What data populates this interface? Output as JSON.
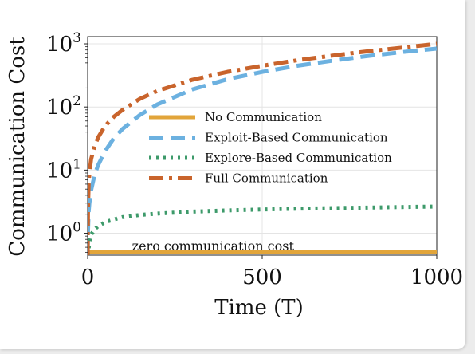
{
  "chart_data": {
    "type": "line",
    "title": "",
    "xlabel": "Time (T)",
    "ylabel": "Communication Cost",
    "xlim": [
      0,
      1000
    ],
    "ylim": [
      0.45,
      1300
    ],
    "yscale": "log",
    "grid": true,
    "legend_position": "center",
    "x_ticks": [
      {
        "value": 0,
        "label": "0"
      },
      {
        "value": 500,
        "label": "500"
      },
      {
        "value": 1000,
        "label": "1000"
      }
    ],
    "y_ticks": [
      {
        "value": 1,
        "label": "10",
        "exp": "0"
      },
      {
        "value": 10,
        "label": "10",
        "exp": "1"
      },
      {
        "value": 100,
        "label": "10",
        "exp": "2"
      },
      {
        "value": 1000,
        "label": "10",
        "exp": "3"
      }
    ],
    "series": [
      {
        "name": "No Communication",
        "color": "#E2A53A",
        "dash": "solid",
        "x": [
          0,
          1000
        ],
        "y": [
          0.5,
          0.5
        ]
      },
      {
        "name": "Exploit-Based Communication",
        "color": "#6CB1E0",
        "dash": "dashed",
        "x": [
          0,
          1,
          3,
          5,
          10,
          20,
          30,
          50,
          75,
          100,
          150,
          200,
          300,
          400,
          500,
          600,
          700,
          800,
          900,
          1000
        ],
        "y": [
          0.45,
          1.1,
          2.2,
          3.0,
          4.8,
          8.5,
          12,
          20,
          32,
          45,
          75,
          110,
          190,
          275,
          360,
          450,
          540,
          640,
          740,
          840
        ]
      },
      {
        "name": "Explore-Based Communication",
        "color": "#3D9A6A",
        "dash": "dotted",
        "x": [
          0,
          5,
          10,
          20,
          30,
          50,
          75,
          100,
          150,
          200,
          300,
          400,
          500,
          600,
          700,
          800,
          900,
          1000
        ],
        "y": [
          0.45,
          0.7,
          0.95,
          1.15,
          1.3,
          1.5,
          1.65,
          1.8,
          1.95,
          2.05,
          2.2,
          2.3,
          2.38,
          2.45,
          2.5,
          2.55,
          2.6,
          2.65
        ]
      },
      {
        "name": "Full Communication",
        "color": "#C9642C",
        "dash": "dashdot",
        "x": [
          0,
          1,
          3,
          5,
          10,
          20,
          30,
          50,
          75,
          100,
          150,
          200,
          300,
          400,
          500,
          600,
          700,
          800,
          900,
          1000
        ],
        "y": [
          0.45,
          2.5,
          6,
          9,
          15,
          24,
          33,
          50,
          70,
          90,
          135,
          180,
          270,
          360,
          450,
          550,
          650,
          760,
          870,
          1000
        ]
      }
    ],
    "annotations": [
      {
        "text": "zero communication cost",
        "x": 560,
        "y": 0.68
      }
    ]
  }
}
